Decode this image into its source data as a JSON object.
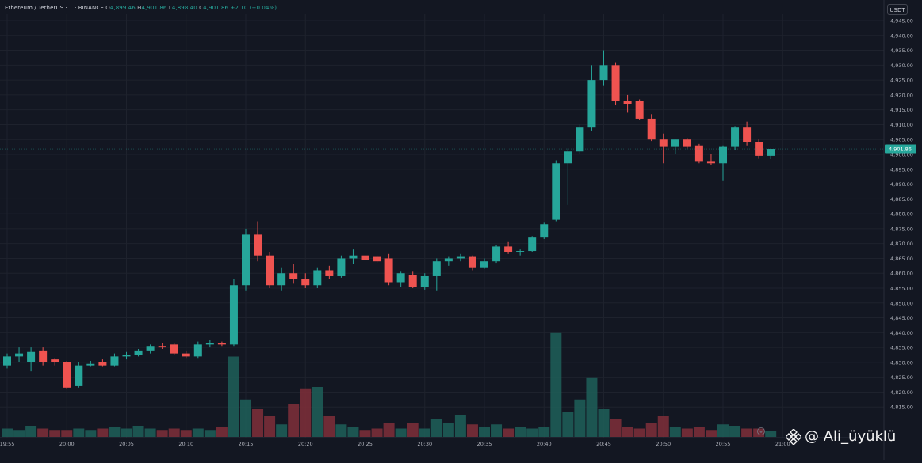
{
  "legend": {
    "symbol": "Ethereum / TetherUS · 1 · BINANCE",
    "open_label": "O",
    "open": "4,899.46",
    "high_label": "H",
    "high": "4,901.86",
    "low_label": "L",
    "low": "4,898.40",
    "close_label": "C",
    "close": "4,901.86",
    "change": "+2.10 (+0.04%)"
  },
  "currency": "USDT",
  "last_price_label": "4,901.86",
  "watermark": {
    "icon": "binance-logo-icon",
    "text": "@ Ali_üyüklü"
  },
  "colors": {
    "background": "#131722",
    "up": "#26a69a",
    "down": "#ef5350",
    "up_volume": "#1e5c57",
    "down_volume": "#7a2e38",
    "grid": "#1e222d",
    "axis_text": "#b2b5be"
  },
  "chart_data": {
    "type": "candlestick",
    "y_axis": {
      "min": 4810,
      "max": 4945,
      "step": 5,
      "position": "right",
      "ticks": [
        "4,945.00",
        "4,940.00",
        "4,935.00",
        "4,930.00",
        "4,925.00",
        "4,920.00",
        "4,915.00",
        "4,910.00",
        "4,905.00",
        "4,900.00",
        "4,895.00",
        "4,890.00",
        "4,885.00",
        "4,880.00",
        "4,875.00",
        "4,870.00",
        "4,865.00",
        "4,860.00",
        "4,855.00",
        "4,850.00",
        "4,845.00",
        "4,840.00",
        "4,835.00",
        "4,830.00",
        "4,825.00",
        "4,820.00",
        "4,815.00"
      ]
    },
    "x_axis": {
      "ticks": [
        "19:55",
        "20:00",
        "20:05",
        "20:10",
        "20:15",
        "20:20",
        "20:25",
        "20:30",
        "20:35",
        "20:40",
        "20:45",
        "20:50",
        "20:55",
        "21:00"
      ]
    },
    "grid": true,
    "candles": [
      {
        "t": "19:55",
        "o": 4829.0,
        "h": 4833.0,
        "l": 4828.0,
        "c": 4832.0,
        "v": 6
      },
      {
        "t": "19:56",
        "o": 4832.0,
        "h": 4835.0,
        "l": 4830.0,
        "c": 4833.0,
        "v": 5
      },
      {
        "t": "19:57",
        "o": 4830.0,
        "h": 4835.0,
        "l": 4827.0,
        "c": 4833.5,
        "v": 8
      },
      {
        "t": "19:58",
        "o": 4834.0,
        "h": 4835.0,
        "l": 4829.0,
        "c": 4830.0,
        "v": 6
      },
      {
        "t": "19:59",
        "o": 4831.0,
        "h": 4831.5,
        "l": 4829.0,
        "c": 4830.0,
        "v": 5
      },
      {
        "t": "20:00",
        "o": 4830.0,
        "h": 4830.5,
        "l": 4821.0,
        "c": 4821.5,
        "v": 5
      },
      {
        "t": "20:01",
        "o": 4822.0,
        "h": 4830.0,
        "l": 4821.5,
        "c": 4829.0,
        "v": 6
      },
      {
        "t": "20:02",
        "o": 4829.0,
        "h": 4830.5,
        "l": 4828.5,
        "c": 4829.5,
        "v": 5
      },
      {
        "t": "20:03",
        "o": 4830.0,
        "h": 4831.0,
        "l": 4828.5,
        "c": 4829.0,
        "v": 6
      },
      {
        "t": "20:04",
        "o": 4829.0,
        "h": 4833.0,
        "l": 4828.5,
        "c": 4832.0,
        "v": 7
      },
      {
        "t": "20:05",
        "o": 4832.0,
        "h": 4833.5,
        "l": 4831.0,
        "c": 4832.5,
        "v": 6
      },
      {
        "t": "20:06",
        "o": 4832.5,
        "h": 4834.5,
        "l": 4832.0,
        "c": 4834.0,
        "v": 8
      },
      {
        "t": "20:07",
        "o": 4834.0,
        "h": 4836.0,
        "l": 4833.0,
        "c": 4835.5,
        "v": 6
      },
      {
        "t": "20:08",
        "o": 4835.5,
        "h": 4836.5,
        "l": 4834.5,
        "c": 4835.0,
        "v": 5
      },
      {
        "t": "20:09",
        "o": 4836.0,
        "h": 4836.5,
        "l": 4832.5,
        "c": 4833.0,
        "v": 6
      },
      {
        "t": "20:10",
        "o": 4833.0,
        "h": 4834.0,
        "l": 4831.5,
        "c": 4832.0,
        "v": 5
      },
      {
        "t": "20:11",
        "o": 4832.0,
        "h": 4837.0,
        "l": 4831.5,
        "c": 4836.0,
        "v": 6
      },
      {
        "t": "20:12",
        "o": 4836.0,
        "h": 4837.5,
        "l": 4835.0,
        "c": 4836.5,
        "v": 5
      },
      {
        "t": "20:13",
        "o": 4836.5,
        "h": 4837.0,
        "l": 4835.5,
        "c": 4836.0,
        "v": 7
      },
      {
        "t": "20:14",
        "o": 4836.0,
        "h": 4858.0,
        "l": 4835.5,
        "c": 4856.0,
        "v": 58
      },
      {
        "t": "20:15",
        "o": 4856.0,
        "h": 4875.0,
        "l": 4854.0,
        "c": 4873.0,
        "v": 27
      },
      {
        "t": "20:16",
        "o": 4873.0,
        "h": 4877.5,
        "l": 4864.0,
        "c": 4866.0,
        "v": 20
      },
      {
        "t": "20:17",
        "o": 4866.0,
        "h": 4867.0,
        "l": 4855.0,
        "c": 4856.0,
        "v": 15
      },
      {
        "t": "20:18",
        "o": 4856.0,
        "h": 4862.0,
        "l": 4854.0,
        "c": 4860.0,
        "v": 9
      },
      {
        "t": "20:19",
        "o": 4860.0,
        "h": 4863.0,
        "l": 4856.5,
        "c": 4858.0,
        "v": 24
      },
      {
        "t": "20:20",
        "o": 4858.0,
        "h": 4860.0,
        "l": 4855.0,
        "c": 4856.0,
        "v": 35
      },
      {
        "t": "20:21",
        "o": 4856.0,
        "h": 4862.0,
        "l": 4855.0,
        "c": 4861.0,
        "v": 36
      },
      {
        "t": "20:22",
        "o": 4861.0,
        "h": 4862.5,
        "l": 4858.0,
        "c": 4859.0,
        "v": 15
      },
      {
        "t": "20:23",
        "o": 4859.0,
        "h": 4866.0,
        "l": 4858.5,
        "c": 4865.0,
        "v": 9
      },
      {
        "t": "20:24",
        "o": 4865.0,
        "h": 4868.0,
        "l": 4863.0,
        "c": 4866.0,
        "v": 7
      },
      {
        "t": "20:25",
        "o": 4866.0,
        "h": 4867.0,
        "l": 4864.0,
        "c": 4864.5,
        "v": 5
      },
      {
        "t": "20:26",
        "o": 4865.5,
        "h": 4866.0,
        "l": 4863.5,
        "c": 4864.0,
        "v": 6
      },
      {
        "t": "20:27",
        "o": 4865.0,
        "h": 4866.5,
        "l": 4856.0,
        "c": 4857.0,
        "v": 10
      },
      {
        "t": "20:28",
        "o": 4857.0,
        "h": 4860.5,
        "l": 4855.5,
        "c": 4860.0,
        "v": 6
      },
      {
        "t": "20:29",
        "o": 4859.5,
        "h": 4860.5,
        "l": 4855.0,
        "c": 4855.5,
        "v": 10
      },
      {
        "t": "20:30",
        "o": 4855.5,
        "h": 4860.0,
        "l": 4854.5,
        "c": 4859.0,
        "v": 6
      },
      {
        "t": "20:31",
        "o": 4859.0,
        "h": 4865.0,
        "l": 4854.0,
        "c": 4864.0,
        "v": 13
      },
      {
        "t": "20:32",
        "o": 4864.0,
        "h": 4865.5,
        "l": 4862.5,
        "c": 4865.0,
        "v": 10
      },
      {
        "t": "20:33",
        "o": 4865.0,
        "h": 4866.5,
        "l": 4864.0,
        "c": 4865.5,
        "v": 16
      },
      {
        "t": "20:34",
        "o": 4865.5,
        "h": 4866.0,
        "l": 4861.0,
        "c": 4862.0,
        "v": 9
      },
      {
        "t": "20:35",
        "o": 4862.0,
        "h": 4865.0,
        "l": 4861.5,
        "c": 4864.0,
        "v": 7
      },
      {
        "t": "20:36",
        "o": 4864.0,
        "h": 4869.5,
        "l": 4863.5,
        "c": 4869.0,
        "v": 9
      },
      {
        "t": "20:37",
        "o": 4869.0,
        "h": 4870.5,
        "l": 4866.5,
        "c": 4867.0,
        "v": 6
      },
      {
        "t": "20:38",
        "o": 4867.0,
        "h": 4868.0,
        "l": 4866.0,
        "c": 4867.5,
        "v": 7
      },
      {
        "t": "20:39",
        "o": 4867.5,
        "h": 4872.5,
        "l": 4867.0,
        "c": 4872.0,
        "v": 6
      },
      {
        "t": "20:40",
        "o": 4872.0,
        "h": 4877.0,
        "l": 4871.5,
        "c": 4876.5,
        "v": 7
      },
      {
        "t": "20:41",
        "o": 4878.0,
        "h": 4898.0,
        "l": 4877.5,
        "c": 4897.0,
        "v": 75
      },
      {
        "t": "20:42",
        "o": 4897.0,
        "h": 4902.0,
        "l": 4883.0,
        "c": 4901.0,
        "v": 18
      },
      {
        "t": "20:43",
        "o": 4901.0,
        "h": 4910.0,
        "l": 4900.0,
        "c": 4909.0,
        "v": 27
      },
      {
        "t": "20:44",
        "o": 4909.0,
        "h": 4930.0,
        "l": 4908.0,
        "c": 4925.0,
        "v": 43
      },
      {
        "t": "20:45",
        "o": 4925.0,
        "h": 4935.0,
        "l": 4923.0,
        "c": 4930.0,
        "v": 20
      },
      {
        "t": "20:46",
        "o": 4930.0,
        "h": 4931.0,
        "l": 4916.5,
        "c": 4918.0,
        "v": 13
      },
      {
        "t": "20:47",
        "o": 4918.0,
        "h": 4920.0,
        "l": 4914.0,
        "c": 4917.0,
        "v": 7
      },
      {
        "t": "20:48",
        "o": 4918.0,
        "h": 4918.5,
        "l": 4911.5,
        "c": 4912.0,
        "v": 6
      },
      {
        "t": "20:49",
        "o": 4912.0,
        "h": 4913.5,
        "l": 4904.5,
        "c": 4905.0,
        "v": 10
      },
      {
        "t": "20:50",
        "o": 4905.0,
        "h": 4907.0,
        "l": 4897.0,
        "c": 4902.5,
        "v": 15
      },
      {
        "t": "20:51",
        "o": 4902.5,
        "h": 4905.0,
        "l": 4900.0,
        "c": 4905.0,
        "v": 7
      },
      {
        "t": "20:52",
        "o": 4905.0,
        "h": 4905.5,
        "l": 4902.0,
        "c": 4902.5,
        "v": 6
      },
      {
        "t": "20:53",
        "o": 4903.0,
        "h": 4903.5,
        "l": 4897.0,
        "c": 4897.5,
        "v": 7
      },
      {
        "t": "20:54",
        "o": 4897.5,
        "h": 4900.0,
        "l": 4896.5,
        "c": 4897.0,
        "v": 5
      },
      {
        "t": "20:55",
        "o": 4897.0,
        "h": 4903.0,
        "l": 4891.0,
        "c": 4902.5,
        "v": 9
      },
      {
        "t": "20:56",
        "o": 4902.5,
        "h": 4909.5,
        "l": 4901.5,
        "c": 4909.0,
        "v": 8
      },
      {
        "t": "20:57",
        "o": 4909.0,
        "h": 4911.0,
        "l": 4903.0,
        "c": 4904.0,
        "v": 6
      },
      {
        "t": "20:58",
        "o": 4904.0,
        "h": 4905.0,
        "l": 4898.5,
        "c": 4899.5,
        "v": 6
      },
      {
        "t": "20:59",
        "o": 4899.5,
        "h": 4902.0,
        "l": 4898.4,
        "c": 4901.86,
        "v": 4
      }
    ],
    "volume_max": 80
  }
}
